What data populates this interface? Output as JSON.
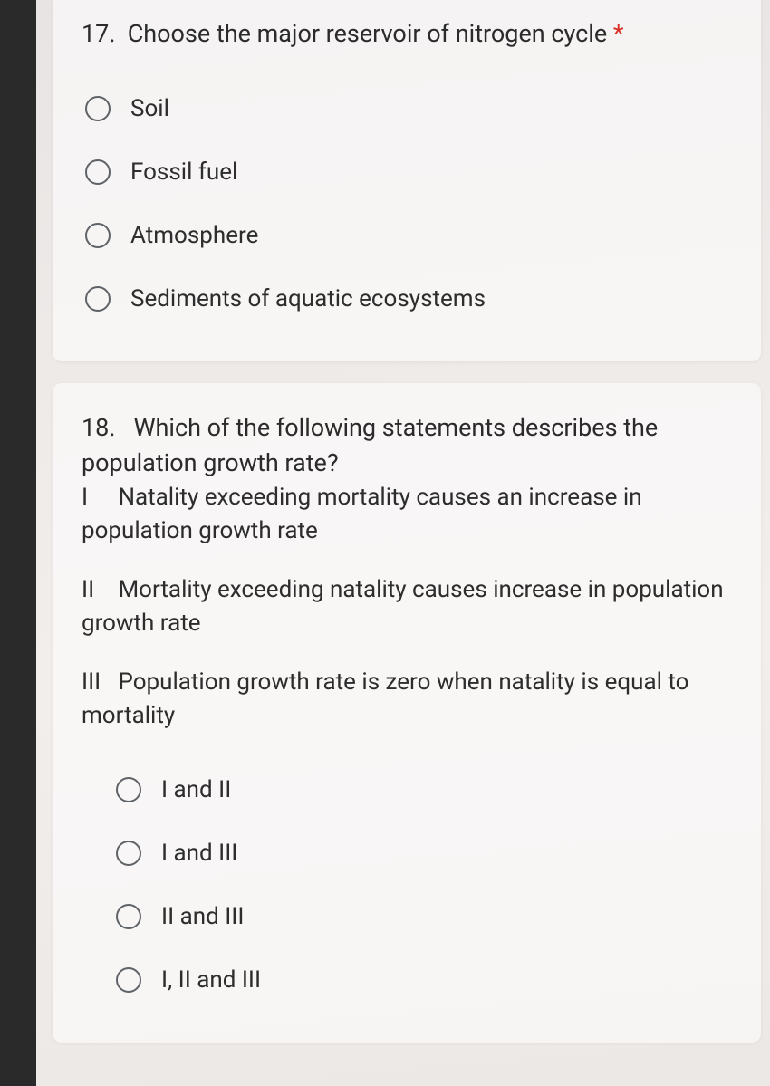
{
  "colors": {
    "text": "#2b2b2b",
    "required": "#d93025",
    "radio_border": "#5f6368",
    "card_bg": "rgba(255,255,255,0.55)",
    "page_bg_dark": "#2a2a2a"
  },
  "q17": {
    "number": "17.",
    "text": "Choose the major reservoir of nitrogen cycle",
    "required_marker": "*",
    "options": [
      {
        "label": "Soil"
      },
      {
        "label": "Fossil fuel"
      },
      {
        "label": "Atmosphere"
      },
      {
        "label": "Sediments of aquatic ecosystems"
      }
    ]
  },
  "q18": {
    "number": "18.",
    "intro": "Which of the following statements describes the population growth rate?",
    "statements": [
      {
        "roman": "I",
        "text": "Natality exceeding mortality causes an increase in population growth rate"
      },
      {
        "roman": "II",
        "text": "Mortality exceeding natality causes increase in population growth rate"
      },
      {
        "roman": "III",
        "text": "Population growth rate is zero when natality is equal to mortality"
      }
    ],
    "options": [
      {
        "label": "I and II"
      },
      {
        "label": "I and III"
      },
      {
        "label": "II and III"
      },
      {
        "label": "I, II and III"
      }
    ]
  }
}
